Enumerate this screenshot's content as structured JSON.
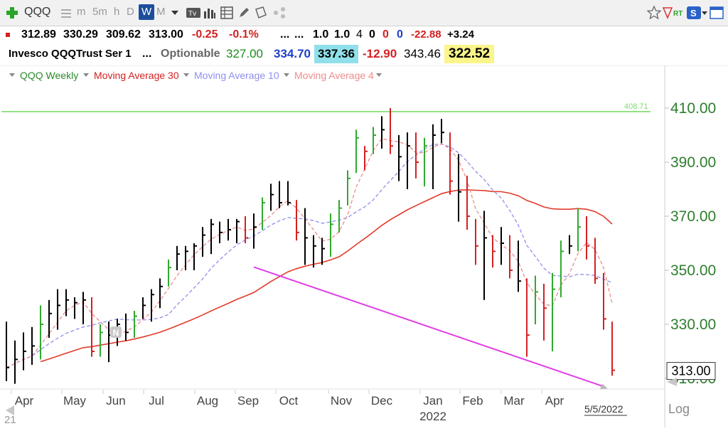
{
  "toolbar": {
    "symbol": "QQQ",
    "timeframes": [
      "m",
      "5m",
      "h",
      "D",
      "W",
      "M"
    ],
    "selected_timeframe": "W"
  },
  "quote_row1": {
    "open": "312.89",
    "high": "330.29",
    "low": "309.62",
    "close": "313.00",
    "change": "-0.25",
    "change_pct": "-0.1%",
    "dots1": "...",
    "dots2": "...",
    "v1": "1.0",
    "v2": "1.0",
    "v3": "4",
    "v4": "0",
    "v5": "0",
    "v6": "0",
    "v7": "-22.88",
    "v8": "+3.24"
  },
  "quote_row2": {
    "name": "Invesco QQQTrust Ser 1",
    "dots": "...",
    "optionable": "Optionable",
    "a": "327.00",
    "b": "334.70",
    "c": "337.36",
    "d": "-12.90",
    "e": "343.46",
    "f": "322.52"
  },
  "legend": {
    "main": "QQQ Weekly",
    "ma30": "Moving Average 30",
    "ma10": "Moving Average 10",
    "ma4": "Moving Average 4"
  },
  "colors": {
    "up_bar": "#2faa2f",
    "down_bar": "#d42121",
    "neutral_bar": "#000000",
    "ma30": "#e23a2a",
    "ma10": "#8f90ee",
    "ma4": "#ef8a8a",
    "resistance": "#7ddc6a",
    "support": "#e23ee6",
    "axis_text": "#2e7d2e"
  },
  "chart_data": {
    "type": "ohlc",
    "timeframe": "weekly",
    "y_ticks": [
      310,
      330,
      350,
      370,
      390,
      410
    ],
    "y_tick_labels": [
      "310.00",
      "330.00",
      "350.00",
      "370.00",
      "390.00",
      "410.00"
    ],
    "ylim": [
      305,
      420
    ],
    "x_month_labels": [
      "Apr",
      "May",
      "Jun",
      "Jul",
      "Aug",
      "Sep",
      "Oct",
      "Nov",
      "Dec",
      "Jan",
      "Feb",
      "Mar",
      "Apr"
    ],
    "year_label": "2022",
    "start_label": "21",
    "last_date_label": "5/5/2022",
    "last_price_label": "313.00",
    "resistance_label": "408.71",
    "resistance_value": 408.71,
    "scale_label": "Log",
    "badge": "N",
    "support_line": {
      "from": {
        "index": 29,
        "value": 351.2
      },
      "to": {
        "index": 70,
        "value": 307
      }
    },
    "bars": [
      {
        "h": 331,
        "l": 309,
        "c": 314
      },
      {
        "h": 324,
        "l": 308,
        "c": 317
      },
      {
        "h": 327,
        "l": 313,
        "c": 320
      },
      {
        "h": 329,
        "l": 315,
        "c": 322
      },
      {
        "h": 337,
        "l": 317,
        "c": 330
      },
      {
        "h": 339,
        "l": 325,
        "c": 334
      },
      {
        "h": 343,
        "l": 328,
        "c": 337
      },
      {
        "h": 343,
        "l": 333,
        "c": 339
      },
      {
        "h": 340,
        "l": 332,
        "c": 338
      },
      {
        "h": 342,
        "l": 330,
        "c": 339
      },
      {
        "h": 340,
        "l": 318,
        "c": 320
      },
      {
        "h": 330,
        "l": 318,
        "c": 327
      },
      {
        "h": 331,
        "l": 316,
        "c": 326
      },
      {
        "h": 332,
        "l": 322,
        "c": 330
      },
      {
        "h": 334,
        "l": 324,
        "c": 327
      },
      {
        "h": 335,
        "l": 325,
        "c": 333
      },
      {
        "h": 340,
        "l": 332,
        "c": 337
      },
      {
        "h": 343,
        "l": 331,
        "c": 341
      },
      {
        "h": 347,
        "l": 336,
        "c": 344
      },
      {
        "h": 354,
        "l": 344,
        "c": 351
      },
      {
        "h": 359,
        "l": 350,
        "c": 356
      },
      {
        "h": 359,
        "l": 350,
        "c": 357
      },
      {
        "h": 360,
        "l": 350,
        "c": 359
      },
      {
        "h": 366,
        "l": 355,
        "c": 363
      },
      {
        "h": 369,
        "l": 356,
        "c": 367
      },
      {
        "h": 368,
        "l": 360,
        "c": 364
      },
      {
        "h": 369,
        "l": 361,
        "c": 365
      },
      {
        "h": 369,
        "l": 360,
        "c": 368
      },
      {
        "h": 370,
        "l": 360,
        "c": 362
      },
      {
        "h": 371,
        "l": 358,
        "c": 366
      },
      {
        "h": 377,
        "l": 365,
        "c": 375
      },
      {
        "h": 382,
        "l": 372,
        "c": 378
      },
      {
        "h": 383,
        "l": 373,
        "c": 375
      },
      {
        "h": 383,
        "l": 374,
        "c": 375
      },
      {
        "h": 376,
        "l": 361,
        "c": 364
      },
      {
        "h": 373,
        "l": 352,
        "c": 362
      },
      {
        "h": 363,
        "l": 351,
        "c": 359
      },
      {
        "h": 362,
        "l": 352,
        "c": 358
      },
      {
        "h": 371,
        "l": 355,
        "c": 367
      },
      {
        "h": 376,
        "l": 364,
        "c": 373
      },
      {
        "h": 387,
        "l": 374,
        "c": 384
      },
      {
        "h": 402,
        "l": 386,
        "c": 399
      },
      {
        "h": 396,
        "l": 387,
        "c": 394
      },
      {
        "h": 403,
        "l": 393,
        "c": 400
      },
      {
        "h": 407,
        "l": 395,
        "c": 402
      },
      {
        "h": 410,
        "l": 393,
        "c": 396
      },
      {
        "h": 400,
        "l": 383,
        "c": 392
      },
      {
        "h": 401,
        "l": 380,
        "c": 396
      },
      {
        "h": 401,
        "l": 384,
        "c": 390
      },
      {
        "h": 399,
        "l": 381,
        "c": 396
      },
      {
        "h": 404,
        "l": 380,
        "c": 400
      },
      {
        "h": 406,
        "l": 397,
        "c": 401
      },
      {
        "h": 401,
        "l": 378,
        "c": 383
      },
      {
        "h": 393,
        "l": 368,
        "c": 379
      },
      {
        "h": 385,
        "l": 365,
        "c": 370
      },
      {
        "h": 369,
        "l": 352,
        "c": 359
      },
      {
        "h": 372,
        "l": 339,
        "c": 362
      },
      {
        "h": 363,
        "l": 351,
        "c": 357
      },
      {
        "h": 366,
        "l": 352,
        "c": 360
      },
      {
        "h": 363,
        "l": 347,
        "c": 350
      },
      {
        "h": 361,
        "l": 342,
        "c": 346
      },
      {
        "h": 347,
        "l": 318,
        "c": 326
      },
      {
        "h": 348,
        "l": 330,
        "c": 342
      },
      {
        "h": 345,
        "l": 324,
        "c": 336
      },
      {
        "h": 349,
        "l": 320,
        "c": 343
      },
      {
        "h": 361,
        "l": 340,
        "c": 357
      },
      {
        "h": 363,
        "l": 356,
        "c": 359
      },
      {
        "h": 373,
        "l": 357,
        "c": 366
      },
      {
        "h": 370,
        "l": 354,
        "c": 359
      },
      {
        "h": 362,
        "l": 345,
        "c": 347
      },
      {
        "h": 349,
        "l": 328,
        "c": 332
      },
      {
        "h": 331,
        "l": 311,
        "c": 313
      }
    ]
  }
}
